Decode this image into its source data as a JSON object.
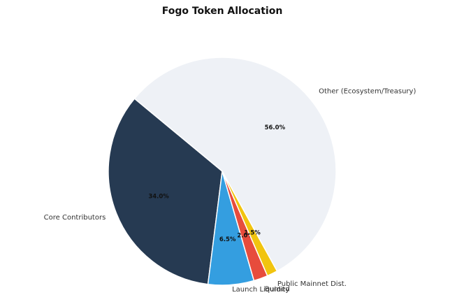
{
  "chart_data": {
    "type": "pie",
    "title": "Fogo Token Allocation",
    "categories": [
      "Other (Ecosystem/Treasury)",
      "Core Contributors",
      "Launch Liquidity",
      "Burned",
      "Public Mainnet Dist."
    ],
    "values": [
      56.0,
      34.0,
      6.5,
      2.0,
      1.5
    ],
    "value_labels": [
      "56.0%",
      "34.0%",
      "6.5%",
      "2.0%",
      "1.5%"
    ],
    "colors": [
      "#eef1f6",
      "#263a52",
      "#349ee0",
      "#e74c3c",
      "#f1c40f"
    ]
  }
}
